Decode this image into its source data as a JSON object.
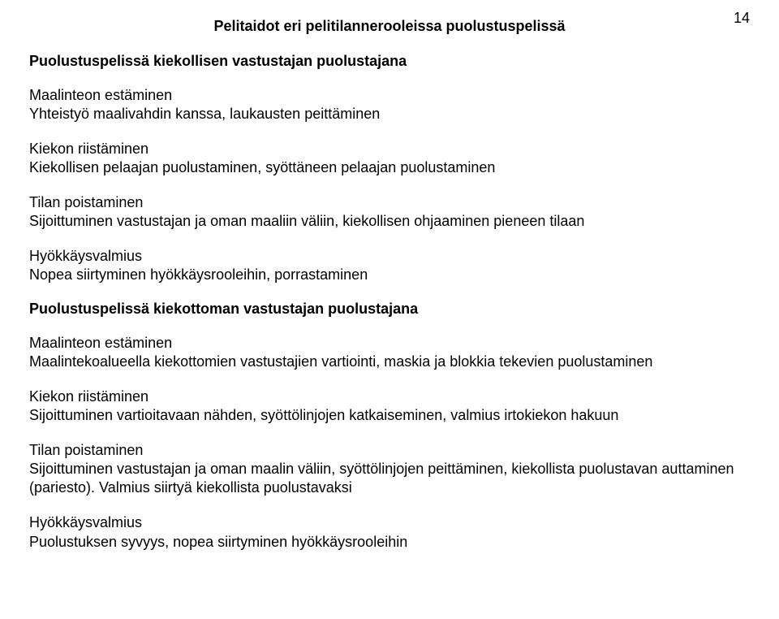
{
  "page_number": "14",
  "title": "Pelitaidot eri pelitilannerooleissa puolustuspelissä",
  "section1": {
    "heading": "Puolustuspelissä kiekollisen vastustajan puolustajana",
    "groups": [
      {
        "label": "Maalinteon estäminen",
        "body": "Yhteistyö maalivahdin kanssa, laukausten peittäminen"
      },
      {
        "label": "Kiekon riistäminen",
        "body": "Kiekollisen pelaajan puolustaminen, syöttäneen pelaajan puolustaminen"
      },
      {
        "label": "Tilan poistaminen",
        "body": "Sijoittuminen vastustajan ja oman maaliin väliin, kiekollisen ohjaaminen pieneen tilaan"
      },
      {
        "label": "Hyökkäysvalmius",
        "body": "Nopea siirtyminen hyökkäysrooleihin, porrastaminen"
      }
    ]
  },
  "section2": {
    "heading": "Puolustuspelissä kiekottoman vastustajan puolustajana",
    "groups": [
      {
        "label": "Maalinteon estäminen",
        "body": "Maalintekoalueella kiekottomien vastustajien vartiointi, maskia ja blokkia tekevien puolustaminen"
      },
      {
        "label": "Kiekon riistäminen",
        "body": "Sijoittuminen vartioitavaan nähden, syöttölinjojen katkaiseminen, valmius irtokiekon hakuun"
      },
      {
        "label": "Tilan poistaminen",
        "body": "Sijoittuminen vastustajan ja oman maalin väliin, syöttölinjojen peittäminen, kiekollista puolustavan auttaminen (pariesto). Valmius siirtyä kiekollista puolustavaksi"
      },
      {
        "label": "Hyökkäysvalmius",
        "body": "Puolustuksen syvyys, nopea siirtyminen hyökkäysrooleihin"
      }
    ]
  }
}
